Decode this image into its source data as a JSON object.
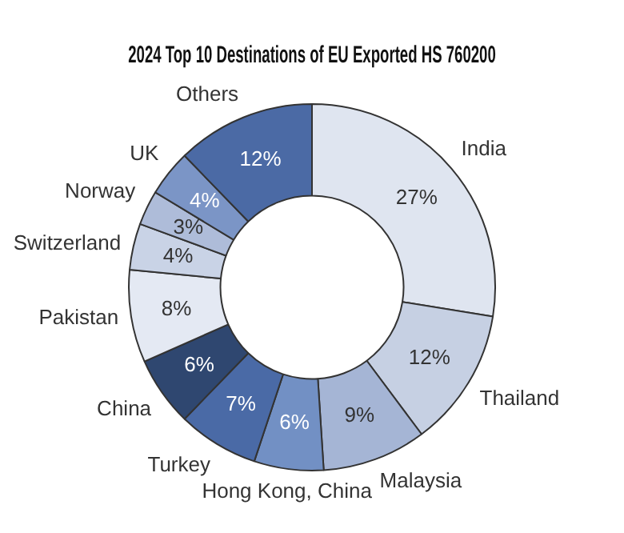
{
  "chart_data": {
    "type": "donut",
    "title": "2024 Top 10 Destinations of EU Exported HS 760200",
    "categories": [
      "India",
      "Thailand",
      "Malaysia",
      "Hong Kong, China",
      "Turkey",
      "China",
      "Pakistan",
      "Switzerland",
      "Norway",
      "UK",
      "Others"
    ],
    "values": [
      27,
      12,
      9,
      6,
      7,
      6,
      8,
      4,
      3,
      4,
      12
    ],
    "value_labels": [
      "27%",
      "12%",
      "9%",
      "6%",
      "7%",
      "6%",
      "8%",
      "4%",
      "3%",
      "4%",
      "12%"
    ],
    "colors": [
      "#dfe5f0",
      "#c6d0e3",
      "#a5b5d5",
      "#7290c4",
      "#4a6aa6",
      "#2f4770",
      "#e4e9f3",
      "#c9d3e6",
      "#aebcd9",
      "#7b95c6",
      "#4b6aa5"
    ],
    "legend": false
  }
}
